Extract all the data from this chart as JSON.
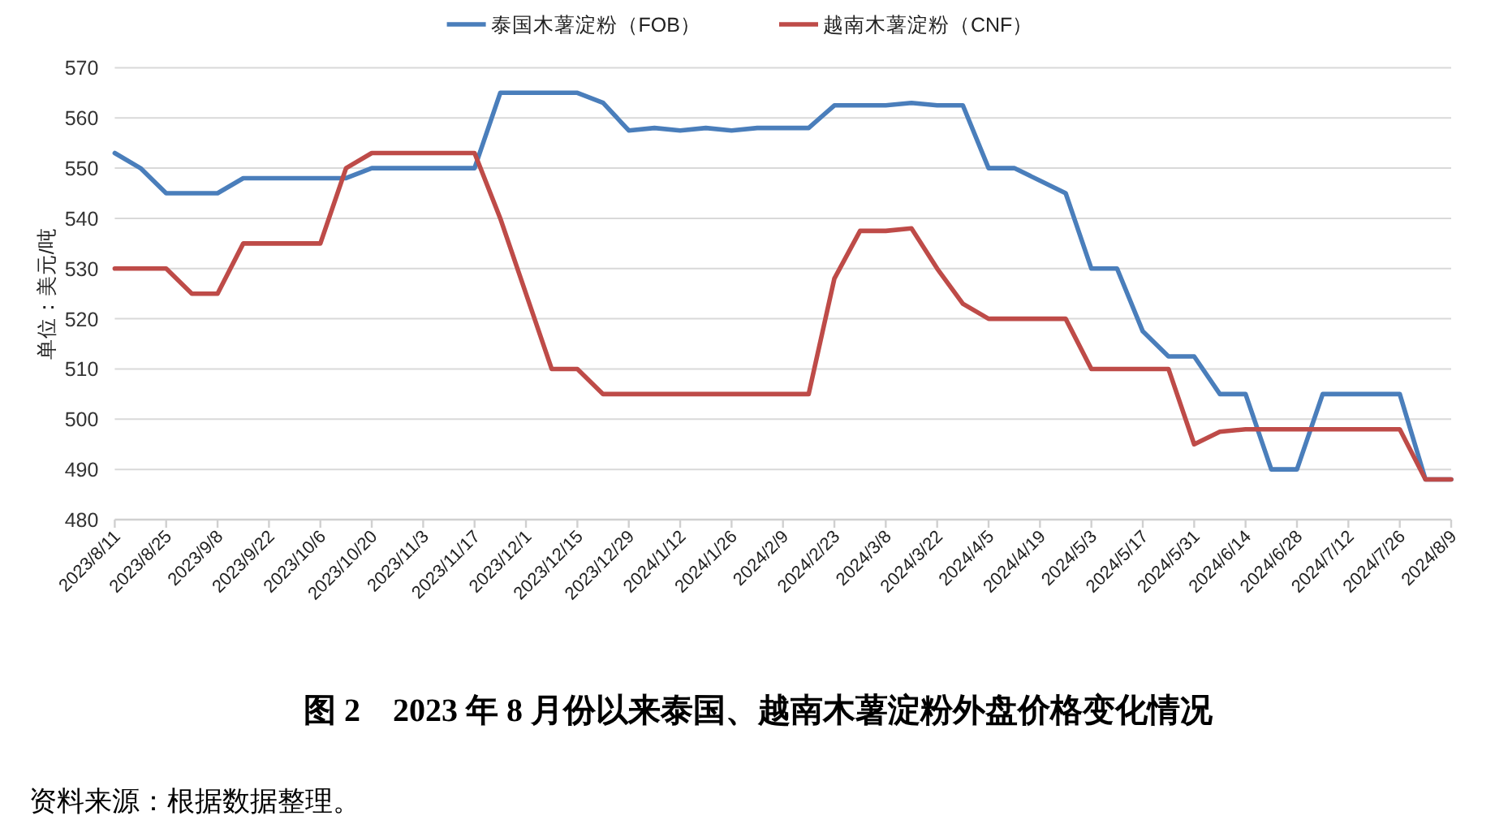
{
  "chart_data": {
    "type": "line",
    "title": "图 2　2023 年 8 月份以来泰国、越南木薯淀粉外盘价格变化情况",
    "ylabel": "单位：美元/吨",
    "annotations": [
      "资料来源：根据数据整理。"
    ],
    "categories": [
      "2023/8/11",
      null,
      "2023/8/25",
      null,
      "2023/9/8",
      null,
      "2023/9/22",
      null,
      "2023/10/6",
      null,
      "2023/10/20",
      null,
      "2023/11/3",
      null,
      "2023/11/17",
      null,
      "2023/12/1",
      null,
      "2023/12/15",
      null,
      "2023/12/29",
      null,
      "2024/1/12",
      null,
      "2024/1/26",
      null,
      "2024/2/9",
      null,
      "2024/2/23",
      null,
      "2024/3/8",
      null,
      "2024/3/22",
      null,
      "2024/4/5",
      null,
      "2024/4/19",
      null,
      "2024/5/3",
      null,
      "2024/5/17",
      null,
      "2024/5/31",
      null,
      "2024/6/14",
      null,
      "2024/6/28",
      null,
      "2024/7/12",
      null,
      "2024/7/26",
      null,
      "2024/8/9"
    ],
    "series": [
      {
        "name": "泰国木薯淀粉（FOB）",
        "color": "#4a7ebb",
        "values": [
          553,
          550,
          545,
          545,
          545,
          548,
          548,
          548,
          548,
          548,
          550,
          550,
          550,
          550,
          550,
          565,
          565,
          565,
          565,
          563,
          557.5,
          558,
          557.5,
          558,
          557.5,
          558,
          558,
          558,
          562.5,
          562.5,
          562.5,
          563,
          562.5,
          562.5,
          550,
          550,
          547.5,
          545,
          530,
          530,
          517.5,
          512.5,
          512.5,
          505,
          505,
          490,
          490,
          505,
          505,
          505,
          505,
          488,
          488
        ]
      },
      {
        "name": "越南木薯淀粉（CNF）",
        "color": "#be4b48",
        "values": [
          530,
          530,
          530,
          525,
          525,
          535,
          535,
          535,
          535,
          550,
          553,
          553,
          553,
          553,
          553,
          540,
          525,
          510,
          510,
          505,
          505,
          505,
          505,
          505,
          505,
          505,
          505,
          505,
          528,
          537.5,
          537.5,
          538,
          530,
          523,
          520,
          520,
          520,
          520,
          510,
          510,
          510,
          510,
          495,
          497.5,
          498,
          498,
          498,
          498,
          498,
          498,
          498,
          488,
          488
        ]
      }
    ],
    "ylim": [
      480,
      570
    ],
    "yticks": [
      480,
      490,
      500,
      510,
      520,
      530,
      540,
      550,
      560,
      570
    ],
    "grid": "y",
    "legend": "top"
  }
}
